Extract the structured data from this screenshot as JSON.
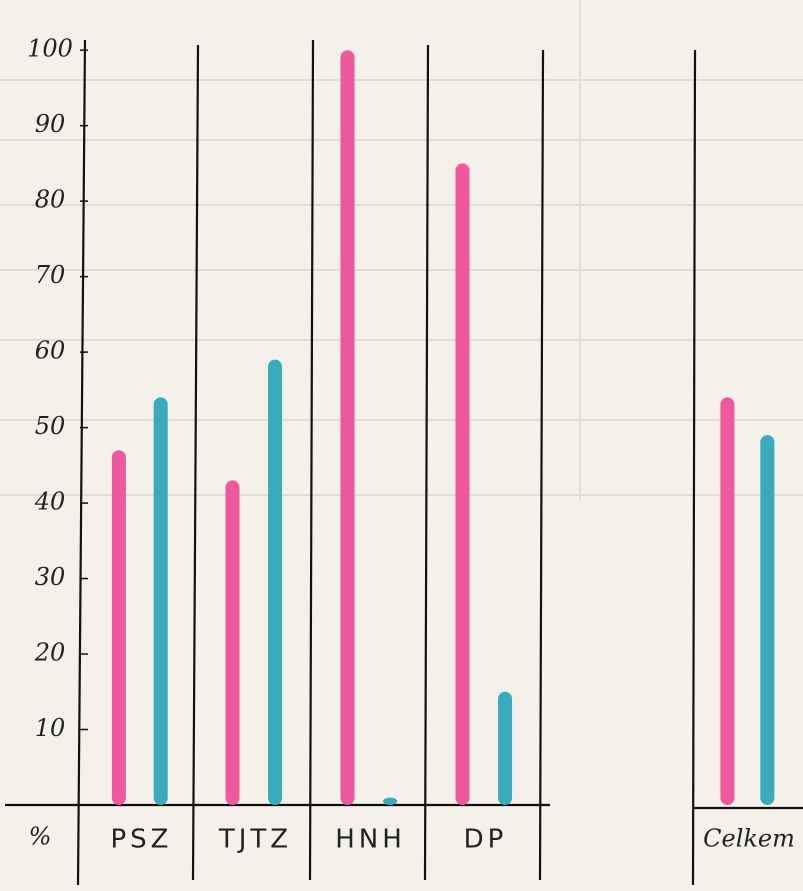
{
  "chart_data": {
    "type": "bar",
    "y_label": "%",
    "categories": [
      "PSZ",
      "TJTZ",
      "HNH",
      "DP",
      "Celkem"
    ],
    "series": [
      {
        "color": "#f0589e",
        "values": [
          47,
          43,
          100,
          85,
          54
        ]
      },
      {
        "color": "#3aabbd",
        "values": [
          54,
          59,
          1,
          15,
          49
        ]
      }
    ],
    "ylim": [
      0,
      104
    ],
    "yticks": [
      10,
      20,
      30,
      40,
      50,
      60,
      70,
      80,
      90,
      100
    ]
  }
}
